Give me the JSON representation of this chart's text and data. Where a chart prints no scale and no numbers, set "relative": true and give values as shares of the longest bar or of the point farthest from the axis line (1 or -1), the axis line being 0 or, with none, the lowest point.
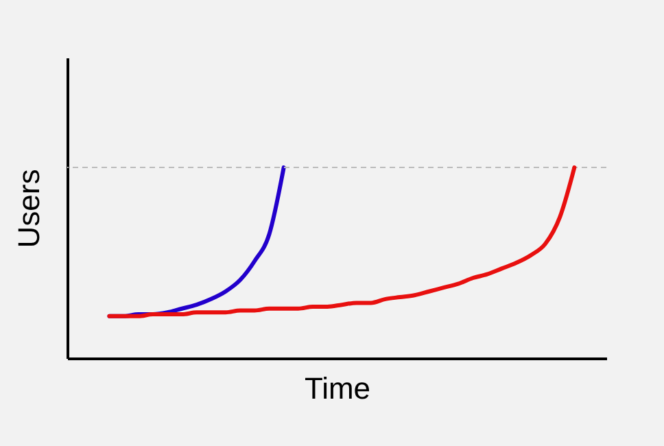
{
  "chart_data": {
    "type": "line",
    "relative": true,
    "xlabel": "Time",
    "ylabel": "Users",
    "categories": [
      null,
      null,
      null,
      null,
      null,
      null,
      null,
      null,
      null,
      null,
      null,
      null,
      null,
      null,
      null,
      null,
      null,
      null,
      null,
      null,
      null,
      null,
      null,
      null,
      null,
      null,
      null,
      null,
      null,
      null,
      null,
      null,
      null
    ],
    "series": [
      {
        "color": "#2200cc",
        "values": [
          0.22,
          0.22,
          0.23,
          0.23,
          0.24,
          0.26,
          0.28,
          0.31,
          0.35,
          0.41,
          0.51,
          0.65,
          1,
          null,
          null,
          null,
          null,
          null,
          null,
          null,
          null,
          null,
          null,
          null,
          null,
          null,
          null,
          null,
          null,
          null,
          null,
          null,
          null
        ]
      },
      {
        "color": "#e8100f",
        "values": [
          0.22,
          0.22,
          0.22,
          0.23,
          0.23,
          0.23,
          0.24,
          0.24,
          0.24,
          0.25,
          0.25,
          0.26,
          0.26,
          0.26,
          0.27,
          0.27,
          0.28,
          0.29,
          0.29,
          0.31,
          0.32,
          0.33,
          0.35,
          0.37,
          0.39,
          0.42,
          0.44,
          0.47,
          0.5,
          0.54,
          0.6,
          0.74,
          1
        ]
      }
    ],
    "ref_lines": [
      {
        "axis": "y",
        "value": 1,
        "color": "#bbbbbb",
        "line_style": "dashed"
      }
    ],
    "grid": false,
    "marker": "none",
    "line_style": "solid"
  }
}
